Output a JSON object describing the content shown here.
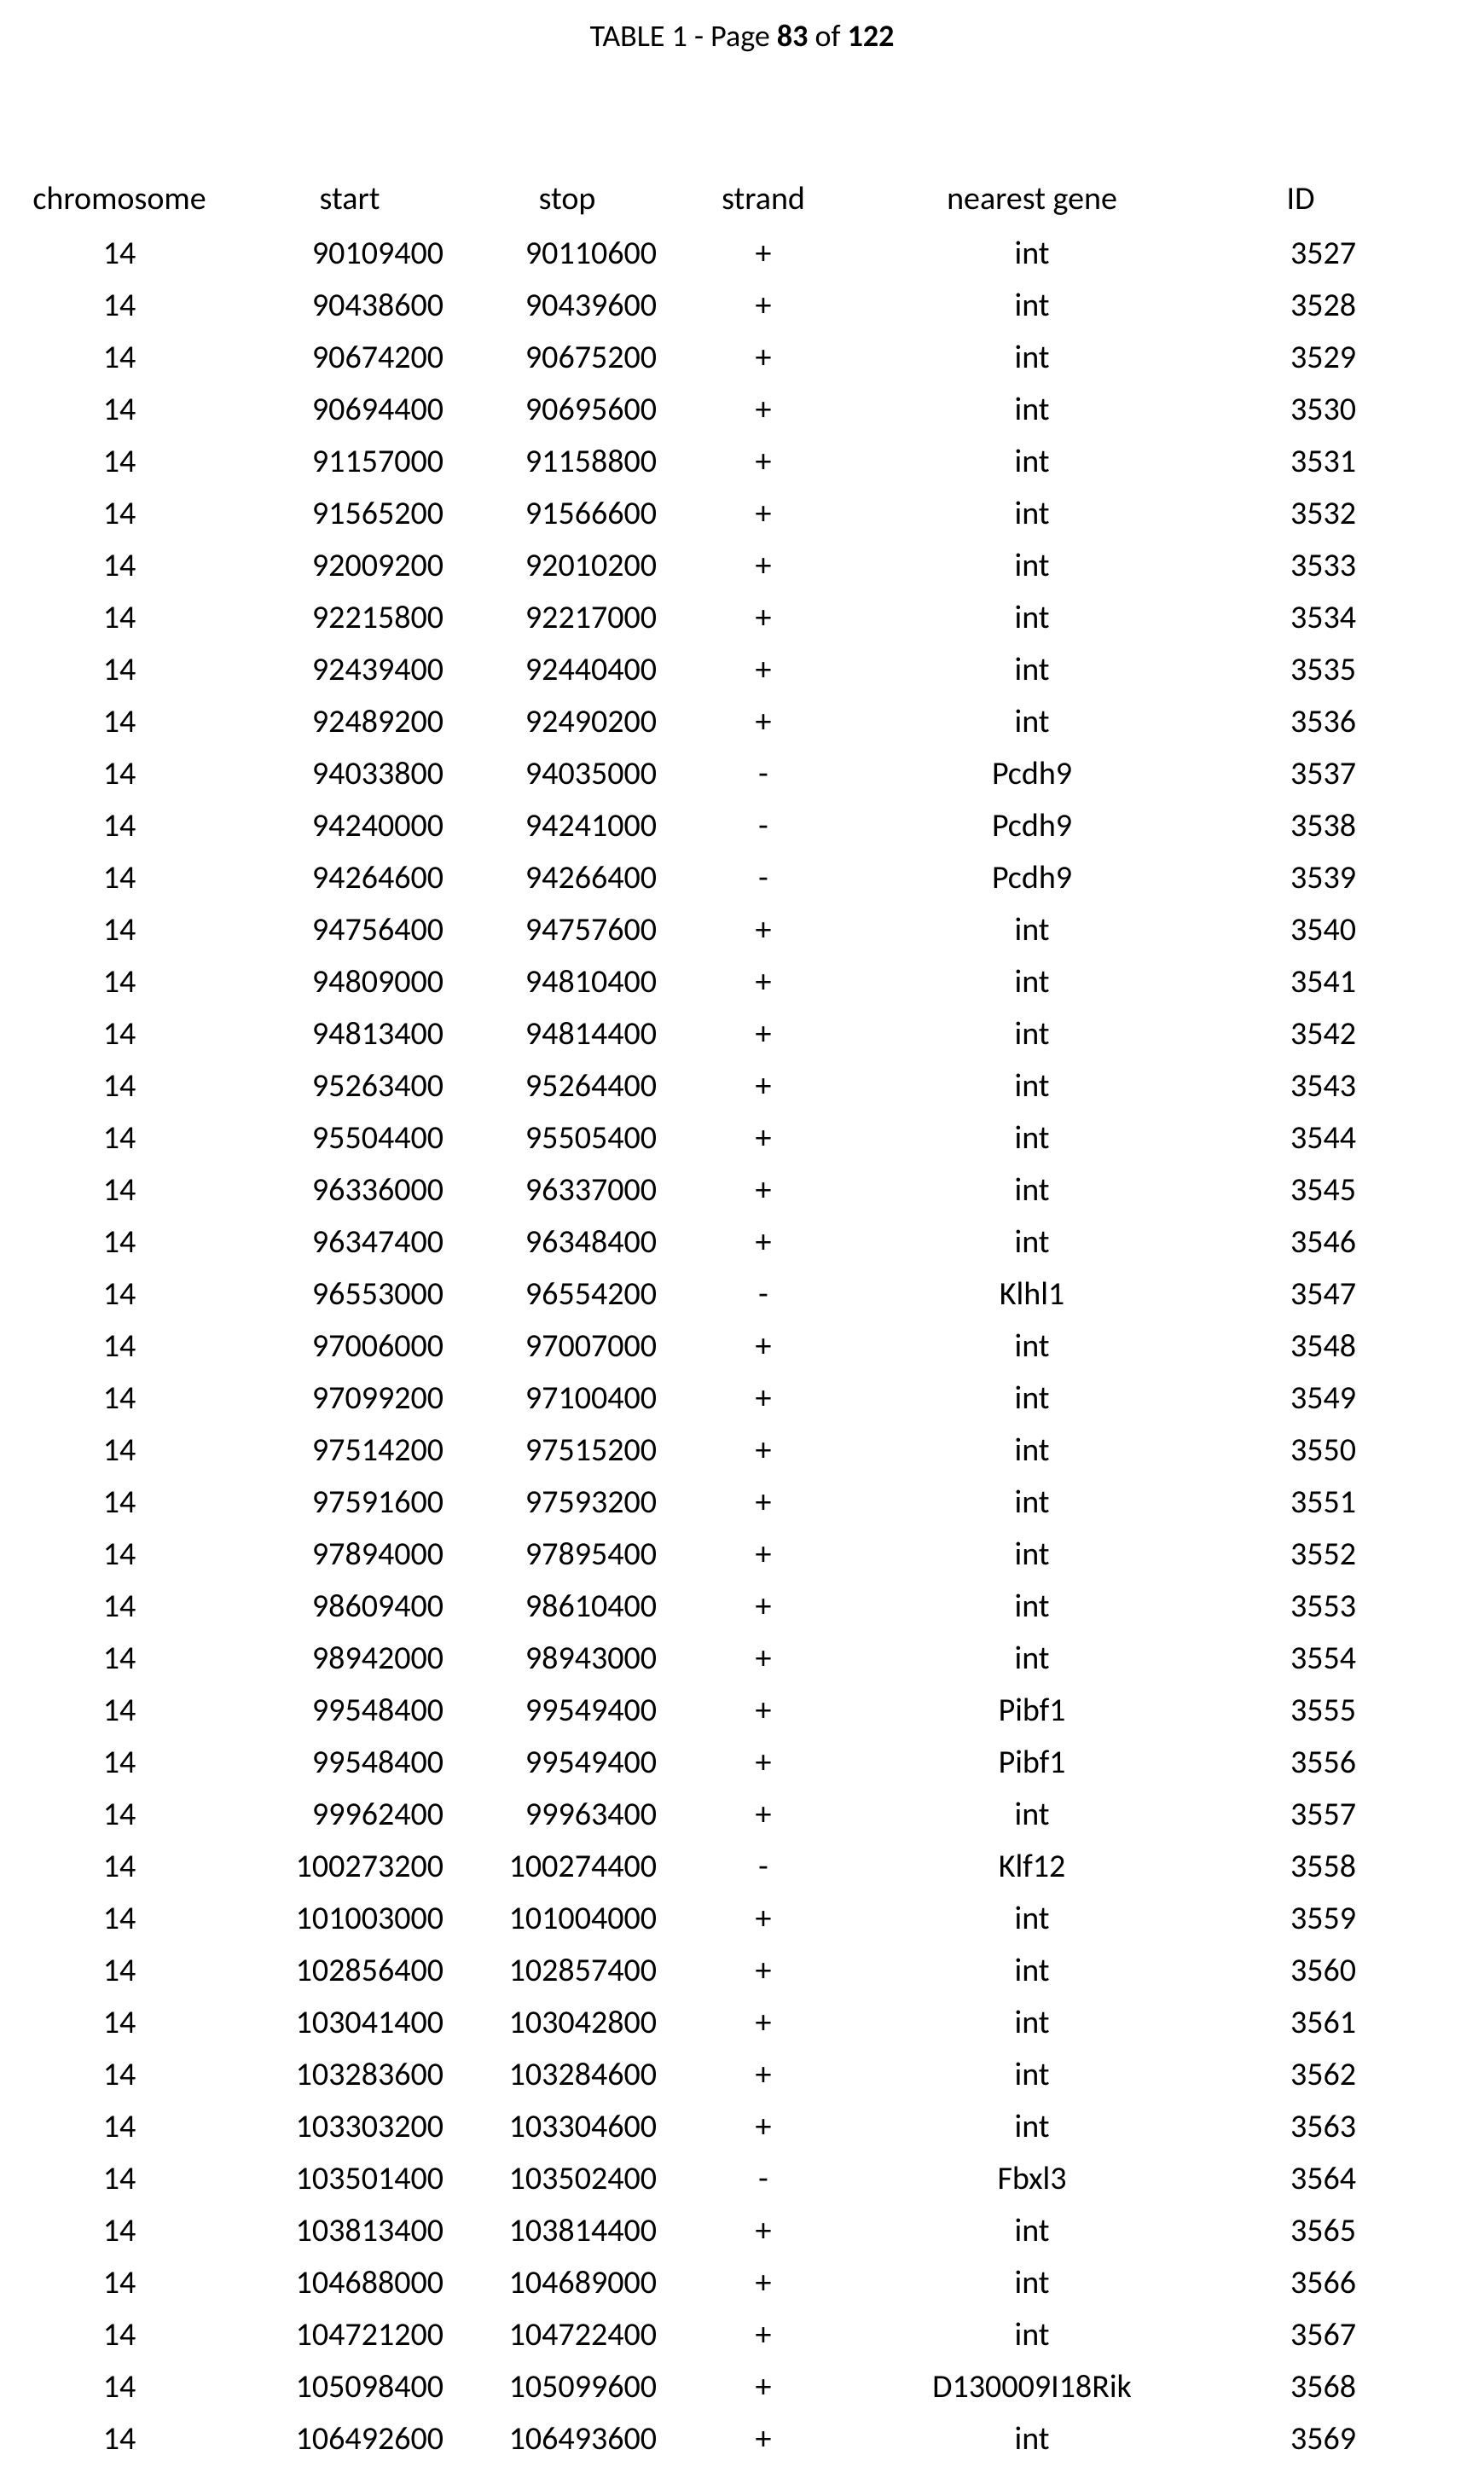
{
  "header": {
    "left_faint": "",
    "center_prefix": "TABLE 1 - Page ",
    "page_current": "83",
    "center_mid": " of ",
    "page_total": "122",
    "right_faint": ""
  },
  "table": {
    "columns": [
      "chromosome",
      "start",
      "stop",
      "strand",
      "nearest gene",
      "ID"
    ],
    "rows": [
      [
        "14",
        "90109400",
        "90110600",
        "+",
        "int",
        "3527"
      ],
      [
        "14",
        "90438600",
        "90439600",
        "+",
        "int",
        "3528"
      ],
      [
        "14",
        "90674200",
        "90675200",
        "+",
        "int",
        "3529"
      ],
      [
        "14",
        "90694400",
        "90695600",
        "+",
        "int",
        "3530"
      ],
      [
        "14",
        "91157000",
        "91158800",
        "+",
        "int",
        "3531"
      ],
      [
        "14",
        "91565200",
        "91566600",
        "+",
        "int",
        "3532"
      ],
      [
        "14",
        "92009200",
        "92010200",
        "+",
        "int",
        "3533"
      ],
      [
        "14",
        "92215800",
        "92217000",
        "+",
        "int",
        "3534"
      ],
      [
        "14",
        "92439400",
        "92440400",
        "+",
        "int",
        "3535"
      ],
      [
        "14",
        "92489200",
        "92490200",
        "+",
        "int",
        "3536"
      ],
      [
        "14",
        "94033800",
        "94035000",
        "-",
        "Pcdh9",
        "3537"
      ],
      [
        "14",
        "94240000",
        "94241000",
        "-",
        "Pcdh9",
        "3538"
      ],
      [
        "14",
        "94264600",
        "94266400",
        "-",
        "Pcdh9",
        "3539"
      ],
      [
        "14",
        "94756400",
        "94757600",
        "+",
        "int",
        "3540"
      ],
      [
        "14",
        "94809000",
        "94810400",
        "+",
        "int",
        "3541"
      ],
      [
        "14",
        "94813400",
        "94814400",
        "+",
        "int",
        "3542"
      ],
      [
        "14",
        "95263400",
        "95264400",
        "+",
        "int",
        "3543"
      ],
      [
        "14",
        "95504400",
        "95505400",
        "+",
        "int",
        "3544"
      ],
      [
        "14",
        "96336000",
        "96337000",
        "+",
        "int",
        "3545"
      ],
      [
        "14",
        "96347400",
        "96348400",
        "+",
        "int",
        "3546"
      ],
      [
        "14",
        "96553000",
        "96554200",
        "-",
        "Klhl1",
        "3547"
      ],
      [
        "14",
        "97006000",
        "97007000",
        "+",
        "int",
        "3548"
      ],
      [
        "14",
        "97099200",
        "97100400",
        "+",
        "int",
        "3549"
      ],
      [
        "14",
        "97514200",
        "97515200",
        "+",
        "int",
        "3550"
      ],
      [
        "14",
        "97591600",
        "97593200",
        "+",
        "int",
        "3551"
      ],
      [
        "14",
        "97894000",
        "97895400",
        "+",
        "int",
        "3552"
      ],
      [
        "14",
        "98609400",
        "98610400",
        "+",
        "int",
        "3553"
      ],
      [
        "14",
        "98942000",
        "98943000",
        "+",
        "int",
        "3554"
      ],
      [
        "14",
        "99548400",
        "99549400",
        "+",
        "Pibf1",
        "3555"
      ],
      [
        "14",
        "99548400",
        "99549400",
        "+",
        "Pibf1",
        "3556"
      ],
      [
        "14",
        "99962400",
        "99963400",
        "+",
        "int",
        "3557"
      ],
      [
        "14",
        "100273200",
        "100274400",
        "-",
        "Klf12",
        "3558"
      ],
      [
        "14",
        "101003000",
        "101004000",
        "+",
        "int",
        "3559"
      ],
      [
        "14",
        "102856400",
        "102857400",
        "+",
        "int",
        "3560"
      ],
      [
        "14",
        "103041400",
        "103042800",
        "+",
        "int",
        "3561"
      ],
      [
        "14",
        "103283600",
        "103284600",
        "+",
        "int",
        "3562"
      ],
      [
        "14",
        "103303200",
        "103304600",
        "+",
        "int",
        "3563"
      ],
      [
        "14",
        "103501400",
        "103502400",
        "-",
        "Fbxl3",
        "3564"
      ],
      [
        "14",
        "103813400",
        "103814400",
        "+",
        "int",
        "3565"
      ],
      [
        "14",
        "104688000",
        "104689000",
        "+",
        "int",
        "3566"
      ],
      [
        "14",
        "104721200",
        "104722400",
        "+",
        "int",
        "3567"
      ],
      [
        "14",
        "105098400",
        "105099600",
        "+",
        "D130009I18Rik",
        "3568"
      ],
      [
        "14",
        "106492600",
        "106493600",
        "+",
        "int",
        "3569"
      ]
    ]
  }
}
